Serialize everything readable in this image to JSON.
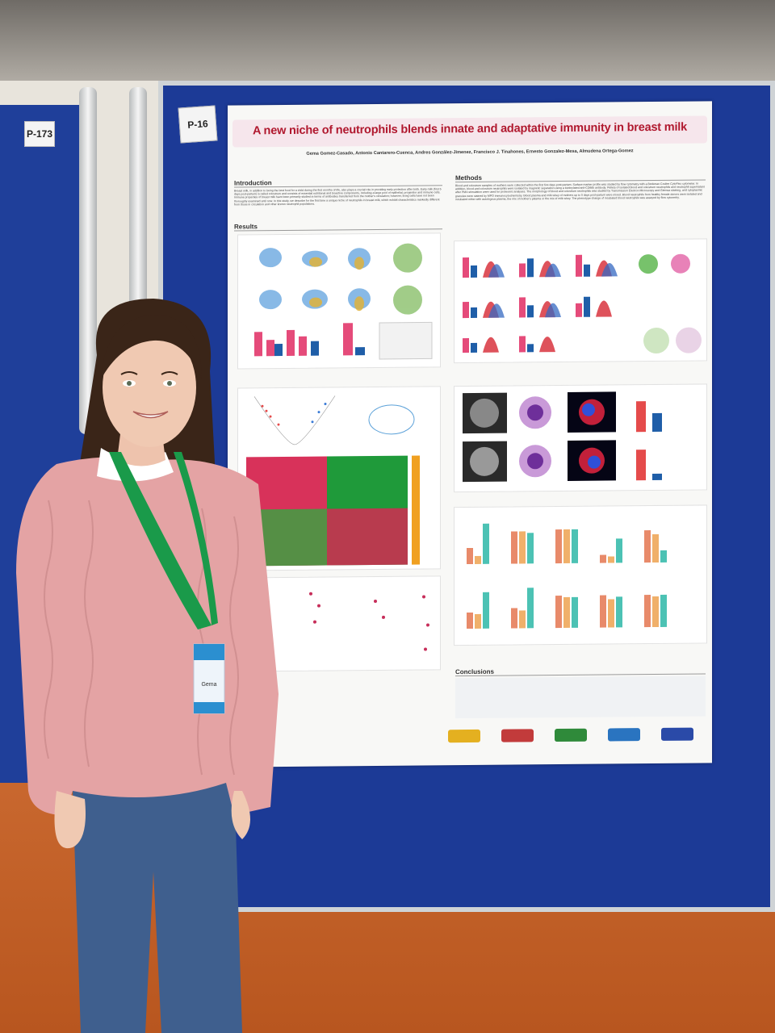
{
  "tags": {
    "left": "P-173",
    "main": "P-16"
  },
  "poster": {
    "title": "A new niche of neutrophils blends innate and adaptative immunity in breast milk",
    "authors": "Gema Gomez-Casado, Antonio Cantarero-Cuenca, Andres González-Jimenez, Francisco J. Tinahones, Ernesto Gonzalez-Mesa, Almudena Ortega-Gomez",
    "sections": {
      "introduction": "Introduction",
      "methods": "Methods",
      "results": "Results",
      "conclusions": "Conclusions"
    },
    "introduction_text": "Breast milk, in addition to being the best food for a child during the first months of life, also plays a crucial role in providing early protection after birth. Early milk (first 5 days post-partum) is called colostrum and consists of essential nutritional and bioactive components, including a large pool of epithelial, progenitor and immune cells. Immune properties of breast milk have been primarily studied in terms of antibodies transferred from the mother's circulation; however, living cells have not been thoroughly examined until now. In this study, we describe for the first time a unique niche of neutrophils in breast milk, which exhibit characteristics markedly different from those in circulation and other known neutrophil populations.",
    "methods_text": "Blood and colostrum samples of mothers were collected within the first five days post-partum. Surface marker profile was studied by flow cytometry with a Beckman Coulter CytoFlex cytometer. In addition, blood and colostrum neutrophils were isolated by magnetic separation using a biotinylated anti-CD66b antibody. Pellets of isolated blood and colostrum neutrophils and neutrophil supernatant after PMA stimulation were used for proteomic analyses. The morphology of blood and colostrum neutrophils was studied by Transmission Electron Microscopy and Giemsa staining, and cytoplasmic granules were stained by MPO immunocytochemistry. Blood plasma and milk whey of mothers up to 5 days post-partum were mixed. Blood neutrophils from healthy female donors were isolated and incubated either with autologous plasma, the mix of mother's plasma or the mix of milk whey. The phenotype change of incubated blood neutrophils was assayed by flow cytometry."
  },
  "badge": {
    "name": "Gema"
  }
}
